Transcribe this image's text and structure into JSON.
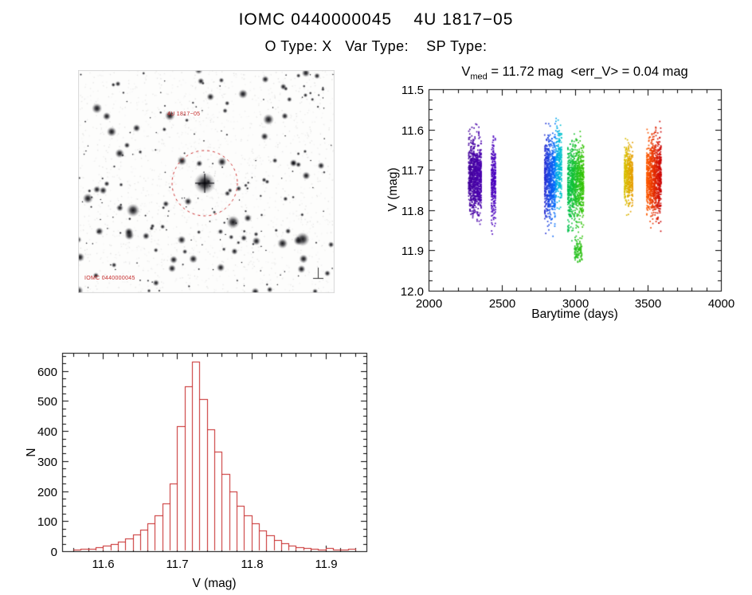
{
  "page": {
    "title": "IOMC 0440000045    4U 1817−05",
    "subtitle": "O Type: X   Var Type:    SP Type:"
  },
  "finding_chart": {
    "target_label": "4U 1817−05",
    "id_label": "IOMC 0440000045",
    "circle_color": "#cc2a2a"
  },
  "chart_data": [
    {
      "id": "lightcurve",
      "type": "scatter",
      "title_parts": {
        "symbol": "V",
        "subscript": "med",
        "rest": " = 11.72 mag  <err_V> = 0.04 mag"
      },
      "v_med_mag": 11.72,
      "err_v_mag": 0.04,
      "xlabel": "Barytime (days)",
      "ylabel": "V (mag)",
      "xlim": [
        2000,
        4000
      ],
      "ylim_top": 11.5,
      "ylim_bottom": 12.0,
      "xticks": [
        2000,
        2500,
        3000,
        3500,
        4000
      ],
      "xticklabels": [
        "2000",
        "2500",
        "3000",
        "3500",
        "4000"
      ],
      "yticks": [
        11.5,
        11.6,
        11.7,
        11.8,
        11.9,
        12.0
      ],
      "yticklabels": [
        "11.5",
        "11.6",
        "11.7",
        "11.8",
        "11.9",
        "12.0"
      ],
      "x_minor_step": 100,
      "y_minor_step": 0.025,
      "clusters": [
        {
          "x0": 2272,
          "x1": 2362,
          "n": 900,
          "v_mean": 11.72,
          "v_sigma": 0.042,
          "v_min": 11.58,
          "v_max": 11.88,
          "color_start": "#43009c",
          "color_end": "#4b00b0"
        },
        {
          "x0": 2428,
          "x1": 2460,
          "n": 260,
          "v_mean": 11.73,
          "v_sigma": 0.05,
          "v_min": 11.61,
          "v_max": 11.88,
          "color_start": "#4a00b8",
          "color_end": "#4a00c4"
        },
        {
          "x0": 2792,
          "x1": 2868,
          "n": 750,
          "v_mean": 11.72,
          "v_sigma": 0.05,
          "v_min": 11.57,
          "v_max": 11.9,
          "color_start": "#2b2bd0",
          "color_end": "#0073ff"
        },
        {
          "x0": 2868,
          "x1": 2912,
          "n": 280,
          "v_mean": 11.69,
          "v_sigma": 0.045,
          "v_min": 11.56,
          "v_max": 11.82,
          "color_start": "#00a0f0",
          "color_end": "#00c8c8"
        },
        {
          "x0": 2950,
          "x1": 3062,
          "n": 900,
          "v_mean": 11.73,
          "v_sigma": 0.05,
          "v_min": 11.6,
          "v_max": 11.9,
          "color_start": "#00c050",
          "color_end": "#38c400"
        },
        {
          "x0": 2998,
          "x1": 3052,
          "n": 90,
          "v_mean": 11.9,
          "v_sigma": 0.016,
          "v_min": 11.86,
          "v_max": 11.93,
          "color_start": "#20c020",
          "color_end": "#30c010"
        },
        {
          "x0": 3338,
          "x1": 3398,
          "n": 450,
          "v_mean": 11.715,
          "v_sigma": 0.035,
          "v_min": 11.61,
          "v_max": 11.83,
          "color_start": "#d6c300",
          "color_end": "#e89b00"
        },
        {
          "x0": 3490,
          "x1": 3592,
          "n": 980,
          "v_mean": 11.72,
          "v_sigma": 0.045,
          "v_min": 11.58,
          "v_max": 11.87,
          "color_start": "#ff5e00",
          "color_end": "#c90000"
        }
      ]
    },
    {
      "id": "v_histogram",
      "type": "bar",
      "xlabel": "V (mag)",
      "ylabel": "N",
      "xlim": [
        11.545,
        11.955
      ],
      "ylim_top": 660,
      "ylim_bottom": 0,
      "xticks": [
        11.6,
        11.7,
        11.8,
        11.9
      ],
      "xticklabels": [
        "11.6",
        "11.7",
        "11.8",
        "11.9"
      ],
      "yticks": [
        0,
        100,
        200,
        300,
        400,
        500,
        600
      ],
      "yticklabels": [
        "0",
        "100",
        "200",
        "300",
        "400",
        "500",
        "600"
      ],
      "x_minor_step": 0.02,
      "y_minor_step": 25,
      "bin_start": 11.55,
      "bin_width": 0.01,
      "counts": [
        3,
        5,
        7,
        9,
        13,
        19,
        25,
        33,
        43,
        56,
        72,
        92,
        118,
        158,
        225,
        415,
        550,
        630,
        505,
        405,
        332,
        258,
        198,
        152,
        118,
        93,
        70,
        52,
        38,
        27,
        19,
        14,
        10,
        8,
        6,
        10,
        6,
        4,
        8,
        3
      ],
      "bar_color": "#c42222"
    }
  ]
}
